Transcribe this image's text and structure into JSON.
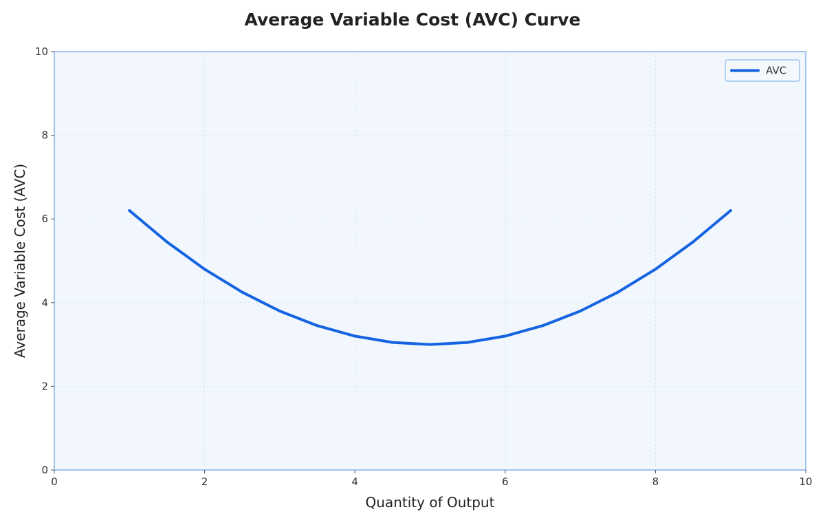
{
  "chart_data": {
    "type": "line",
    "title": "Average Variable Cost (AVC) Curve",
    "xlabel": "Quantity of Output",
    "ylabel": "Average Variable Cost (AVC)",
    "xlim": [
      0,
      10
    ],
    "ylim": [
      0,
      10
    ],
    "xticks": [
      0,
      2,
      4,
      6,
      8,
      10
    ],
    "yticks": [
      0,
      2,
      4,
      6,
      8,
      10
    ],
    "grid": true,
    "legend_position": "top-right",
    "series": [
      {
        "name": "AVC",
        "color": "#1463e0",
        "x": [
          1,
          1.5,
          2,
          2.5,
          3,
          3.5,
          4,
          4.5,
          5,
          5.5,
          6,
          6.5,
          7,
          7.5,
          8,
          8.5,
          9
        ],
        "y": [
          6.2,
          5.45,
          4.8,
          4.25,
          3.8,
          3.45,
          3.2,
          3.05,
          3.0,
          3.05,
          3.2,
          3.45,
          3.8,
          4.25,
          4.8,
          5.45,
          6.2
        ]
      }
    ]
  },
  "colors": {
    "plot_background": "#f1f7fd",
    "plot_border": "#9ec3f0",
    "grid": "#dde6f0"
  }
}
